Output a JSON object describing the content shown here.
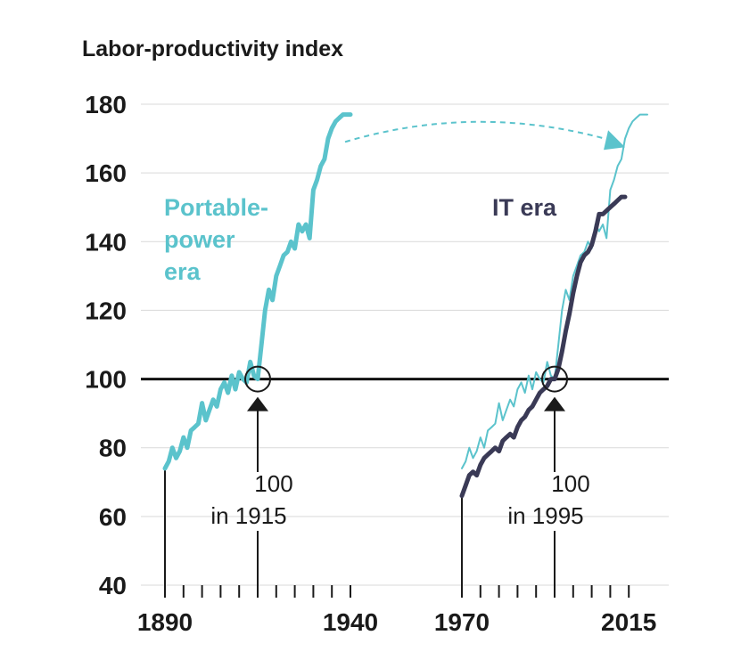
{
  "chart_data": {
    "type": "line",
    "title": "Labor-productivity index",
    "ylim": [
      40,
      180
    ],
    "yticks": [
      40,
      60,
      80,
      100,
      120,
      140,
      160,
      180
    ],
    "reference_line": 100,
    "x_tick_labels": [
      "1890",
      "1940",
      "1970",
      "2015"
    ],
    "series": [
      {
        "name": "Portable-power era",
        "label_lines": [
          "Portable-",
          "power",
          "era"
        ],
        "color": "#5bc3cc",
        "years": [
          1890,
          1891,
          1892,
          1893,
          1894,
          1895,
          1896,
          1897,
          1898,
          1899,
          1900,
          1901,
          1902,
          1903,
          1904,
          1905,
          1906,
          1907,
          1908,
          1909,
          1910,
          1911,
          1912,
          1913,
          1914,
          1915,
          1916,
          1917,
          1918,
          1919,
          1920,
          1921,
          1922,
          1923,
          1924,
          1925,
          1926,
          1927,
          1928,
          1929,
          1930,
          1931,
          1932,
          1933,
          1934,
          1935,
          1936,
          1937,
          1938,
          1939,
          1940
        ],
        "values": [
          74,
          76,
          80,
          77,
          79,
          83,
          80,
          85,
          86,
          87,
          93,
          88,
          91,
          94,
          92,
          97,
          99,
          96,
          101,
          97,
          102,
          100,
          99,
          105,
          101,
          100,
          110,
          120,
          126,
          123,
          130,
          133,
          136,
          137,
          140,
          138,
          145,
          143,
          145,
          141,
          155,
          158,
          162,
          164,
          170,
          173,
          175,
          176,
          177,
          177,
          177
        ]
      },
      {
        "name": "Portable-power era (shifted to IT-era years)",
        "color": "#5bc3cc",
        "years": [
          1970,
          1971,
          1972,
          1973,
          1974,
          1975,
          1976,
          1977,
          1978,
          1979,
          1980,
          1981,
          1982,
          1983,
          1984,
          1985,
          1986,
          1987,
          1988,
          1989,
          1990,
          1991,
          1992,
          1993,
          1994,
          1995,
          1996,
          1997,
          1998,
          1999,
          2000,
          2001,
          2002,
          2003,
          2004,
          2005,
          2006,
          2007,
          2008,
          2009,
          2010,
          2011,
          2012,
          2013,
          2014,
          2015,
          2016,
          2017,
          2018,
          2019,
          2020
        ],
        "values": [
          74,
          76,
          80,
          77,
          79,
          83,
          80,
          85,
          86,
          87,
          93,
          88,
          91,
          94,
          92,
          97,
          99,
          96,
          101,
          97,
          102,
          100,
          99,
          105,
          101,
          100,
          110,
          120,
          126,
          123,
          130,
          133,
          136,
          137,
          140,
          138,
          145,
          143,
          145,
          141,
          155,
          158,
          162,
          164,
          170,
          173,
          175,
          176,
          177,
          177,
          177
        ]
      },
      {
        "name": "IT era",
        "label_lines": [
          "IT era"
        ],
        "color": "#3a3a56",
        "years": [
          1970,
          1971,
          1972,
          1973,
          1974,
          1975,
          1976,
          1977,
          1978,
          1979,
          1980,
          1981,
          1982,
          1983,
          1984,
          1985,
          1986,
          1987,
          1988,
          1989,
          1990,
          1991,
          1992,
          1993,
          1994,
          1995,
          1996,
          1997,
          1998,
          1999,
          2000,
          2001,
          2002,
          2003,
          2004,
          2005,
          2006,
          2007,
          2008,
          2009,
          2010,
          2011,
          2012,
          2013,
          2014
        ],
        "values": [
          66,
          69,
          72,
          73,
          72,
          75,
          77,
          78,
          79,
          80,
          79,
          82,
          83,
          84,
          83,
          86,
          88,
          89,
          91,
          92,
          94,
          96,
          97,
          98,
          100,
          100,
          103,
          108,
          114,
          119,
          125,
          130,
          134,
          136,
          137,
          139,
          143,
          148,
          148,
          149,
          150,
          151,
          152,
          153,
          153
        ]
      }
    ],
    "annotations": [
      {
        "label_lines": [
          "100",
          "in 1915"
        ],
        "year": 1915,
        "value": 100
      },
      {
        "label_lines": [
          "100",
          "in 1995"
        ],
        "year": 1995,
        "value": 100
      }
    ],
    "shift_arrow": {
      "from_year": 1940,
      "to_year": 2014,
      "value": 168
    }
  }
}
